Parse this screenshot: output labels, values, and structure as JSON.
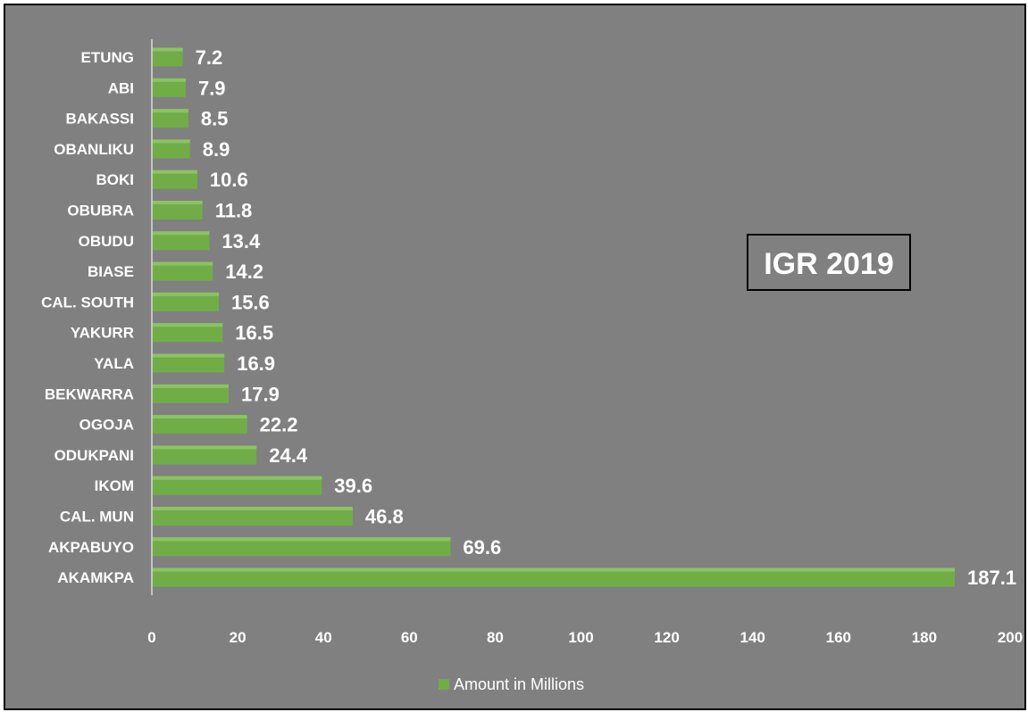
{
  "chart_data": {
    "type": "bar",
    "orientation": "horizontal",
    "title": "IGR 2019",
    "categories": [
      "ETUNG",
      "ABI",
      "BAKASSI",
      "OBANLIKU",
      "BOKI",
      "OBUBRA",
      "OBUDU",
      "BIASE",
      "CAL. SOUTH",
      "YAKURR",
      "YALA",
      "BEKWARRA",
      "OGOJA",
      "ODUKPANI",
      "IKOM",
      "CAL. MUN",
      "AKPABUYO",
      "AKAMKPA"
    ],
    "series": [
      {
        "name": "Amount in Millions",
        "values": [
          7.2,
          7.9,
          8.5,
          8.9,
          10.6,
          11.8,
          13.4,
          14.2,
          15.6,
          16.5,
          16.9,
          17.9,
          22.2,
          24.4,
          39.6,
          46.8,
          69.6,
          187.1
        ],
        "color": "#70ad47"
      }
    ],
    "xlim": [
      0,
      200
    ],
    "xticks": [
      0,
      20,
      40,
      60,
      80,
      100,
      120,
      140,
      160,
      180,
      200
    ],
    "data_labels": [
      "7.2",
      "7.9",
      "8.5",
      "8.9",
      "10.6",
      "11.8",
      "13.4",
      "14.2",
      "15.6",
      "16.5",
      "16.9",
      "17.9",
      "22.2",
      "24.4",
      "39.6",
      "46.8",
      "69.6",
      "187.1"
    ],
    "grid": false,
    "legend_position": "bottom",
    "background_color": "#808080"
  }
}
